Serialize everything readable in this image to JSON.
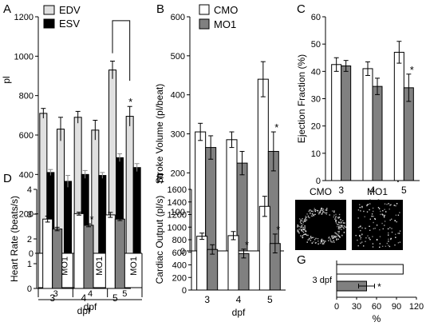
{
  "colors": {
    "white_bar": "#ffffff",
    "light_bar": "#e0e0e0",
    "dark_bar": "#000000",
    "grey_bar": "#808080",
    "axis": "#000000"
  },
  "panel_images": {
    "labels": [
      "CMO",
      "MO1"
    ]
  },
  "chart_data": [
    {
      "panel": "A",
      "type": "bar",
      "ylabel": "pl",
      "ylim": [
        0,
        1200
      ],
      "yticks": [
        "0",
        "200",
        "400",
        "600",
        "800",
        "1000",
        "1200"
      ],
      "groups": [
        {
          "dpf": "3",
          "categories": [
            "CMO",
            "MO1"
          ]
        },
        {
          "dpf": "4",
          "categories": [
            "CMO",
            "MO1"
          ]
        },
        {
          "dpf": "5",
          "categories": [
            "CMO",
            "MO1"
          ]
        }
      ],
      "xlabel": "dpf",
      "series": [
        {
          "name": "EDV",
          "values": [
            710,
            630,
            690,
            625,
            930,
            695
          ],
          "errors": [
            25,
            60,
            30,
            50,
            45,
            50
          ]
        },
        {
          "name": "ESV",
          "values": [
            410,
            365,
            400,
            395,
            485,
            435
          ],
          "errors": [
            15,
            30,
            20,
            15,
            20,
            20
          ]
        }
      ],
      "annotations": [
        "*"
      ]
    },
    {
      "panel": "B",
      "type": "bar",
      "ylabel": "Stroke Volume (pl/beat)",
      "ylim": [
        0,
        600
      ],
      "yticks": [
        "0",
        "100",
        "200",
        "300",
        "400",
        "500",
        "600"
      ],
      "categories": [
        "3",
        "4",
        "5"
      ],
      "xlabel": "dpf",
      "series": [
        {
          "name": "CMO",
          "values": [
            305,
            285,
            440
          ],
          "errors": [
            22,
            20,
            45
          ]
        },
        {
          "name": "MO1",
          "values": [
            265,
            225,
            255
          ],
          "errors": [
            30,
            30,
            50
          ]
        }
      ],
      "annotations": [
        "*"
      ]
    },
    {
      "panel": "C",
      "type": "bar",
      "ylabel": "Ejection Fraction (%)",
      "ylim": [
        0,
        60
      ],
      "yticks": [
        "0",
        "10",
        "20",
        "30",
        "40",
        "50",
        "60"
      ],
      "categories": [
        "3",
        "4",
        "5"
      ],
      "xlabel": "dpf",
      "series": [
        {
          "name": "CMO",
          "values": [
            42.5,
            41,
            47
          ],
          "errors": [
            2.5,
            2.5,
            4
          ]
        },
        {
          "name": "MO1",
          "values": [
            42,
            34.5,
            34
          ],
          "errors": [
            2,
            3,
            5
          ]
        }
      ],
      "annotations": [
        "*"
      ]
    },
    {
      "panel": "D",
      "type": "bar",
      "ylabel": "Heart Rate (beats/s)",
      "ylim": [
        0,
        4
      ],
      "yticks": [
        "0",
        "1",
        "2",
        "3",
        "4"
      ],
      "categories": [
        "3",
        "4",
        "5"
      ],
      "xlabel": "dpf",
      "series": [
        {
          "name": "CMO",
          "values": [
            2.8,
            3.02,
            2.97
          ],
          "errors": [
            0.12,
            0.06,
            0.1
          ]
        },
        {
          "name": "MO1",
          "values": [
            2.4,
            2.55,
            2.8
          ],
          "errors": [
            0.07,
            0.06,
            0.06
          ]
        }
      ],
      "annotations": [
        "*"
      ]
    },
    {
      "panel": "E",
      "type": "bar",
      "ylabel": "Cardiac Output (pl/s)",
      "ylim": [
        0,
        1600
      ],
      "yticks": [
        "0",
        "200",
        "400",
        "600",
        "800",
        "1000",
        "1200",
        "1400",
        "1600"
      ],
      "categories": [
        "3",
        "4",
        "5"
      ],
      "xlabel": "dpf",
      "series": [
        {
          "name": "CMO",
          "values": [
            855,
            865,
            1330
          ],
          "errors": [
            50,
            65,
            160
          ]
        },
        {
          "name": "MO1",
          "values": [
            645,
            580,
            740
          ],
          "errors": [
            75,
            70,
            150
          ]
        }
      ],
      "annotations": [
        "*",
        "*"
      ]
    },
    {
      "panel": "G",
      "type": "bar",
      "orientation": "horizontal",
      "xlabel": "%",
      "xlim": [
        0,
        120
      ],
      "xticks": [
        "0",
        "30",
        "60",
        "90",
        "120"
      ],
      "category": "3 dpf",
      "series": [
        {
          "name": "CMO",
          "value": 100,
          "error": 0
        },
        {
          "name": "MO1",
          "value": 45,
          "error": 12
        }
      ],
      "annotations": [
        "*"
      ]
    }
  ]
}
